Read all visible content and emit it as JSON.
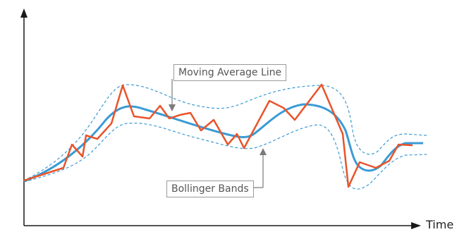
{
  "labels": {
    "moving_average": "Moving Average Line",
    "bollinger_bands": "Bollinger Bands",
    "x_axis": "Time"
  },
  "colors": {
    "price": "#e8542a",
    "moving_average": "#3a9bd5",
    "bands": "#3a9bd5",
    "axis": "#1a1a1a",
    "callout": "#7a7a7a"
  }
}
